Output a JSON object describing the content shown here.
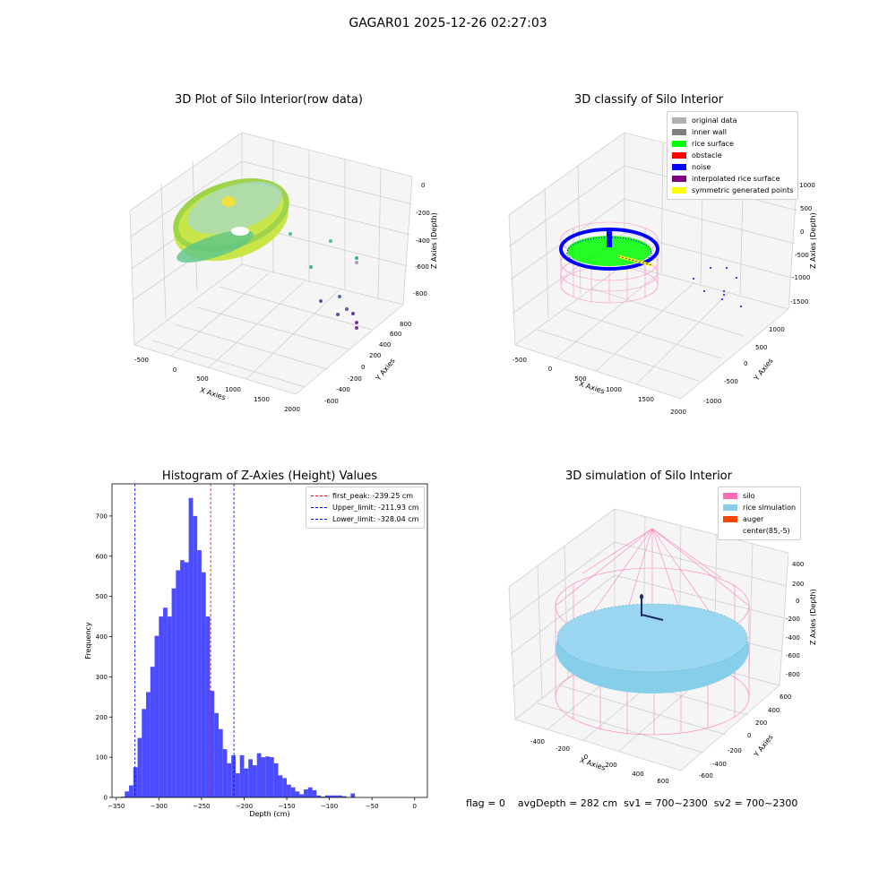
{
  "suptitle": "GAGAR01 2025-12-26 02:27:03",
  "panels": {
    "raw": {
      "title": "3D Plot of Silo Interior(row data)",
      "xlabel": "X Axies",
      "ylabel": "Y Axies",
      "zlabel": "Z Axies (Depth)",
      "xticks": [
        "-500",
        "0",
        "500",
        "1000",
        "1500",
        "2000"
      ],
      "yticks": [
        "-600",
        "-400",
        "-200",
        "0",
        "200",
        "400",
        "600",
        "800"
      ],
      "zticks": [
        "0",
        "-200",
        "-400",
        "-600",
        "-800"
      ]
    },
    "classify": {
      "title": "3D classify of Silo Interior",
      "xlabel": "X Axies",
      "ylabel": "Y Axies",
      "zlabel": "Z Axies (Depth)",
      "xticks": [
        "-500",
        "0",
        "500",
        "1000",
        "1500",
        "2000"
      ],
      "yticks": [
        "-1000",
        "-500",
        "0",
        "500",
        "1000"
      ],
      "zticks": [
        "1000",
        "500",
        "0",
        "-500",
        "-1000",
        "-1500"
      ],
      "legend": [
        {
          "label": "original data",
          "color": "#b0b0b0"
        },
        {
          "label": "inner wall",
          "color": "#808080"
        },
        {
          "label": "rice surface",
          "color": "#00ff00"
        },
        {
          "label": "obstacle",
          "color": "#ff0000"
        },
        {
          "label": "noise",
          "color": "#0000ff"
        },
        {
          "label": "interpolated rice surface",
          "color": "#800080"
        },
        {
          "label": "symmetric generated points",
          "color": "#ffff00"
        }
      ]
    },
    "simulation": {
      "title": "3D simulation of Silo Interior",
      "xlabel": "X Axies",
      "ylabel": "Y Axies",
      "zlabel": "Z Axies (Depth)",
      "xticks": [
        "-400",
        "-200",
        "0",
        "200",
        "400",
        "600"
      ],
      "yticks": [
        "-600",
        "-400",
        "-200",
        "0",
        "200",
        "400",
        "600"
      ],
      "zticks": [
        "400",
        "200",
        "0",
        "-200",
        "-400",
        "-600",
        "-800"
      ],
      "legend": [
        {
          "label": "silo",
          "color": "#ff69b4"
        },
        {
          "label": "rice simulation",
          "color": "#87ceeb"
        },
        {
          "label": "auger",
          "color": "#ff4500"
        },
        {
          "label": "center(85,-5)",
          "color": ""
        }
      ]
    }
  },
  "status": {
    "flag": "flag = 0",
    "avg": "avgDepth = 282 cm",
    "sv1": "sv1 = 700~2300",
    "sv2": "sv2 = 700~2300"
  },
  "chart_data": [
    {
      "type": "bar",
      "title": "Histogram of Z-Axies (Height) Values",
      "xlabel": "Depth (cm)",
      "ylabel": "Frequency",
      "xlim": [
        -355,
        15
      ],
      "ylim": [
        0,
        780
      ],
      "bin_width": 5,
      "bin_starts": [
        -345,
        -340,
        -335,
        -330,
        -325,
        -320,
        -315,
        -310,
        -305,
        -300,
        -295,
        -290,
        -285,
        -280,
        -275,
        -270,
        -265,
        -260,
        -255,
        -250,
        -245,
        -240,
        -235,
        -230,
        -225,
        -220,
        -215,
        -210,
        -205,
        -200,
        -195,
        -190,
        -185,
        -180,
        -175,
        -170,
        -165,
        -160,
        -155,
        -150,
        -145,
        -140,
        -135,
        -130,
        -125,
        -120,
        -115,
        -110,
        -105,
        -100,
        -95,
        -90,
        -85,
        -80,
        -75,
        -70,
        -65,
        -60,
        -55,
        -50,
        -45,
        -40,
        -35,
        -30,
        -25,
        -20,
        -15,
        -10,
        -5,
        0
      ],
      "values": [
        2,
        15,
        30,
        75,
        148,
        220,
        262,
        325,
        402,
        450,
        472,
        450,
        520,
        565,
        590,
        585,
        745,
        700,
        615,
        560,
        450,
        265,
        210,
        170,
        120,
        85,
        105,
        60,
        105,
        72,
        95,
        80,
        110,
        100,
        102,
        100,
        85,
        55,
        48,
        32,
        25,
        15,
        8,
        20,
        25,
        18,
        5,
        2,
        5,
        5,
        5,
        5,
        3,
        0,
        10,
        0,
        0,
        0,
        0,
        0,
        0,
        0,
        0,
        0,
        0,
        0,
        0,
        0,
        0,
        0
      ],
      "bar_color": "#4b4bff",
      "xticks": [
        -350,
        -300,
        -250,
        -200,
        -150,
        -100,
        -50,
        0
      ],
      "yticks": [
        0,
        100,
        200,
        300,
        400,
        500,
        600,
        700
      ],
      "lines": [
        {
          "label": "first_peak: -239.25 cm",
          "x": -239.25,
          "color": "#ff0000"
        },
        {
          "label": "Upper_limit: -211.93 cm",
          "x": -211.93,
          "color": "#0000ff"
        },
        {
          "label": "Lower_limit: -328.04 cm",
          "x": -328.04,
          "color": "#0000ff"
        }
      ]
    }
  ]
}
